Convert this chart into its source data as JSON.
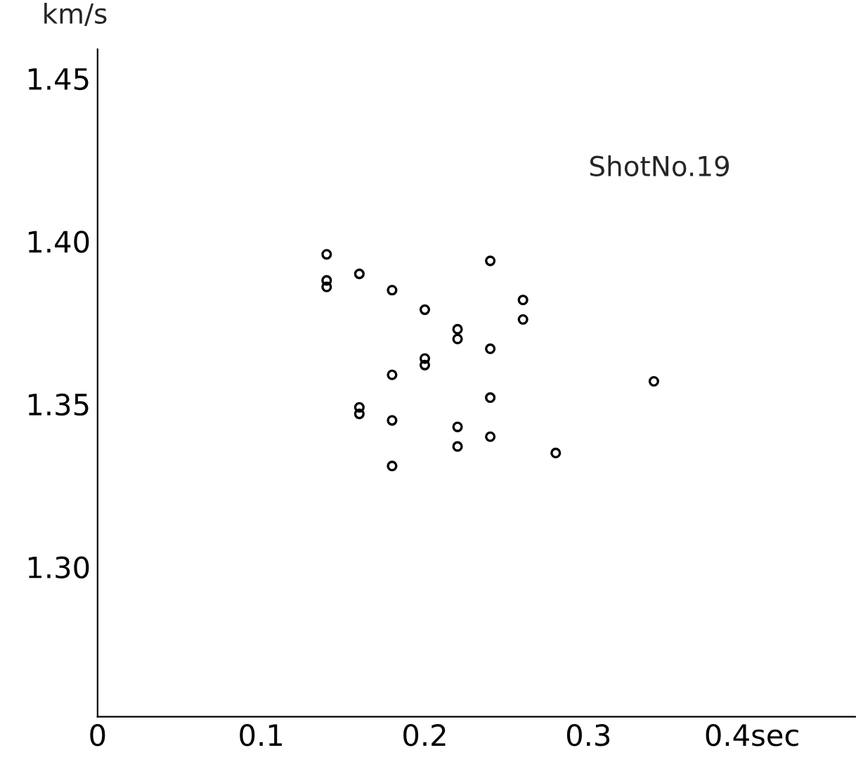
{
  "chart_data": {
    "type": "scatter",
    "ylabel": "km/s",
    "annotations": [
      "ShotNo.19"
    ],
    "x": [
      0.14,
      0.14,
      0.14,
      0.16,
      0.18,
      0.2,
      0.22,
      0.22,
      0.24,
      0.26,
      0.26,
      0.24,
      0.2,
      0.2,
      0.18,
      0.24,
      0.16,
      0.16,
      0.18,
      0.22,
      0.24,
      0.22,
      0.28,
      0.18,
      0.34
    ],
    "values": [
      1.396,
      1.388,
      1.386,
      1.39,
      1.385,
      1.379,
      1.373,
      1.37,
      1.394,
      1.382,
      1.376,
      1.367,
      1.364,
      1.362,
      1.359,
      1.352,
      1.349,
      1.347,
      1.345,
      1.343,
      1.34,
      1.337,
      1.335,
      1.331,
      1.357
    ],
    "color": "#000000",
    "marker": "circle",
    "grid": false,
    "xlim": [
      0,
      0.463
    ],
    "ylim": [
      1.254,
      1.459
    ],
    "xticks": [
      0,
      0.1,
      0.2,
      0.3,
      {
        "value": 0.4,
        "label": "0.4sec"
      }
    ],
    "yticks": [
      {
        "value": 1.3,
        "label": "1.30"
      },
      {
        "value": 1.35,
        "label": "1.35"
      },
      {
        "value": 1.4,
        "label": "1.40"
      },
      {
        "value": 1.45,
        "label": "1.45"
      }
    ]
  }
}
